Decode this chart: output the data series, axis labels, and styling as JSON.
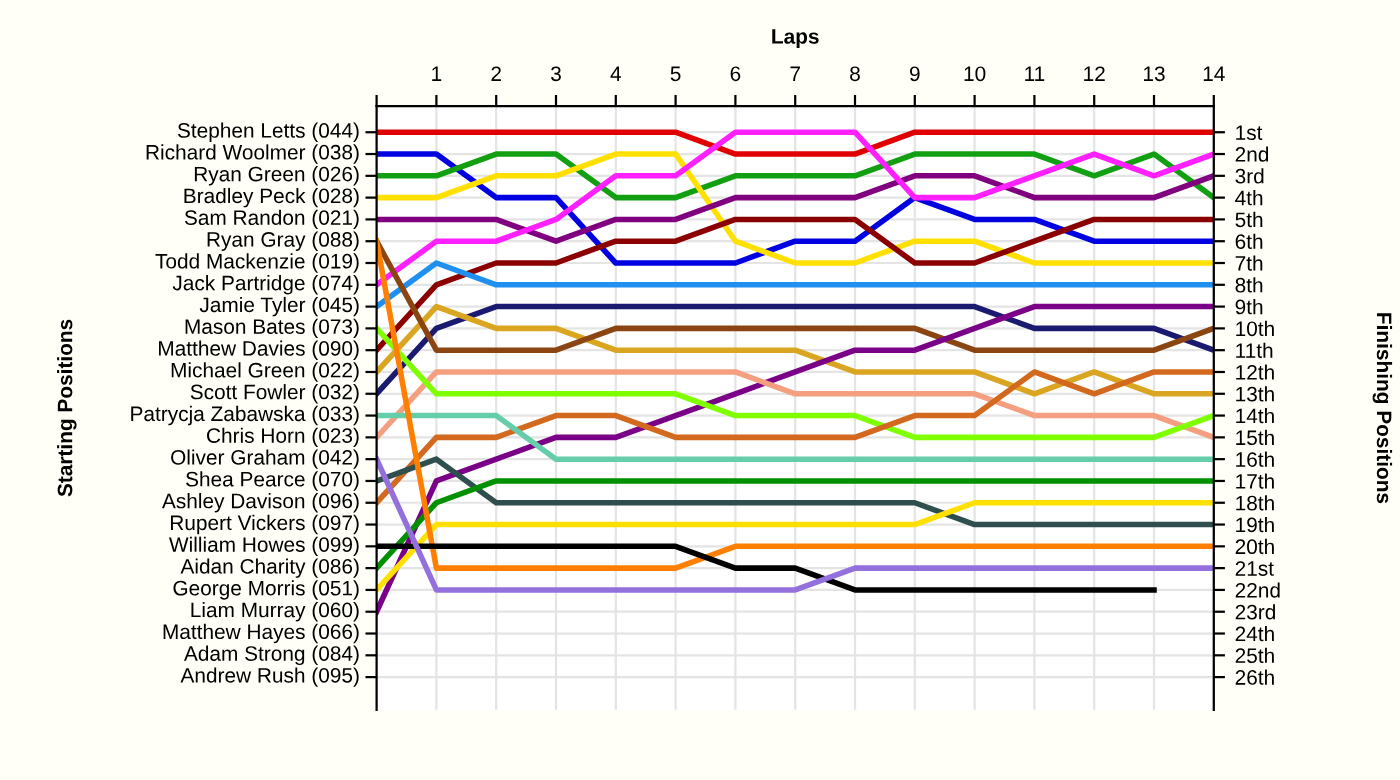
{
  "chart_data": {
    "type": "line",
    "xlabel": "Laps",
    "ylabel": "Finishing Positions",
    "x": [
      0,
      1,
      2,
      3,
      4,
      5,
      6,
      7,
      8,
      9,
      10,
      11,
      12,
      13,
      14
    ],
    "xlim": [
      0,
      14
    ],
    "xticks": [
      {
        "value": 0,
        "label": null
      },
      1,
      2,
      3,
      4,
      5,
      6,
      7,
      8,
      9,
      10,
      11,
      12,
      13,
      14
    ],
    "ylim": [
      27.5,
      -0.2
    ],
    "yticks": [
      {
        "value": 1,
        "label": "1st"
      },
      {
        "value": 2,
        "label": "2nd"
      },
      {
        "value": 3,
        "label": "3rd"
      },
      {
        "value": 4,
        "label": "4th"
      },
      {
        "value": 5,
        "label": "5th"
      },
      {
        "value": 6,
        "label": "6th"
      },
      {
        "value": 7,
        "label": "7th"
      },
      {
        "value": 8,
        "label": "8th"
      },
      {
        "value": 9,
        "label": "9th"
      },
      {
        "value": 10,
        "label": "10th"
      },
      {
        "value": 11,
        "label": "11th"
      },
      {
        "value": 12,
        "label": "12th"
      },
      {
        "value": 13,
        "label": "13th"
      },
      {
        "value": 14,
        "label": "14th"
      },
      {
        "value": 15,
        "label": "15th"
      },
      {
        "value": 16,
        "label": "16th"
      },
      {
        "value": 17,
        "label": "17th"
      },
      {
        "value": 18,
        "label": "18th"
      },
      {
        "value": 19,
        "label": "19th"
      },
      {
        "value": 20,
        "label": "20th"
      },
      {
        "value": 21,
        "label": "21st"
      },
      {
        "value": 22,
        "label": "22nd"
      },
      {
        "value": 23,
        "label": "23rd"
      },
      {
        "value": 24,
        "label": "24th"
      },
      {
        "value": 25,
        "label": "25th"
      },
      {
        "value": 26,
        "label": "26th"
      }
    ],
    "annotations": [
      "Starting Positions",
      "Stephen Letts (044)",
      "Richard Woolmer (038)",
      "Ryan Green (026)",
      "Bradley Peck (028)",
      "Sam Randon (021)",
      "Ryan Gray (088)",
      "Todd Mackenzie (019)",
      "Jack Partridge (074)",
      "Jamie Tyler (045)",
      "Mason Bates (073)",
      "Matthew Davies (090)",
      "Michael Green (022)",
      "Scott Fowler (032)",
      "Patrycja Zabawska (033)",
      "Chris Horn (023)",
      "Oliver Graham (042)",
      "Shea Pearce (070)",
      "Ashley Davison (096)",
      "Rupert Vickers (097)",
      "William Howes (099)",
      "Aidan Charity (086)",
      "George Morris (051)",
      "Liam Murray (060)",
      "Matthew Hayes (066)",
      "Adam Strong (084)",
      "Andrew Rush (095)"
    ],
    "grid": true,
    "legend": false,
    "marker": "none",
    "line_style": "solid",
    "series": [
      {
        "color": "#e00000",
        "values": [
          1,
          1,
          1,
          1,
          1,
          1,
          2,
          2,
          2,
          1,
          1,
          1,
          1,
          1,
          1
        ]
      },
      {
        "color": "#0000e0",
        "values": [
          2,
          2,
          4,
          4,
          7,
          7,
          7,
          6,
          6,
          4,
          5,
          5,
          6,
          6,
          6
        ]
      },
      {
        "color": "#12a012",
        "values": [
          3,
          3,
          2,
          2,
          4,
          4,
          3,
          3,
          3,
          2,
          2,
          2,
          3,
          2,
          4
        ]
      },
      {
        "color": "#ffe000",
        "values": [
          4,
          4,
          3,
          3,
          2,
          2,
          6,
          7,
          7,
          6,
          6,
          7,
          7,
          7,
          7
        ]
      },
      {
        "color": "#800080",
        "values": [
          5,
          5,
          5,
          6,
          5,
          5,
          4,
          4,
          4,
          3,
          3,
          4,
          4,
          4,
          3
        ]
      },
      {
        "color": "#ff20ff",
        "values": [
          8,
          6,
          6,
          5,
          3,
          3,
          1,
          1,
          1,
          4,
          4,
          3,
          2,
          3,
          2
        ]
      },
      {
        "color": "#8b0000",
        "values": [
          11,
          8,
          7,
          7,
          6,
          6,
          5,
          5,
          5,
          7,
          7,
          6,
          5,
          5,
          5
        ]
      },
      {
        "color": "#2090f0",
        "values": [
          9,
          7,
          8,
          8,
          8,
          8,
          8,
          8,
          8,
          8,
          8,
          8,
          8,
          8,
          8
        ]
      },
      {
        "color": "#1a1a70",
        "values": [
          13,
          10,
          9,
          9,
          9,
          9,
          9,
          9,
          9,
          9,
          9,
          10,
          10,
          10,
          11
        ]
      },
      {
        "color": "#daa520",
        "values": [
          12,
          9,
          10,
          10,
          11,
          11,
          11,
          11,
          12,
          12,
          12,
          13,
          12,
          13,
          13
        ]
      },
      {
        "color": "#8b4513",
        "values": [
          6,
          11,
          11,
          11,
          10,
          10,
          10,
          10,
          10,
          10,
          11,
          11,
          11,
          11,
          10
        ]
      },
      {
        "color": "#7b0088",
        "values": [
          23,
          17,
          16,
          15,
          15,
          14,
          13,
          12,
          11,
          11,
          10,
          9,
          9,
          9,
          9
        ]
      },
      {
        "color": "#f4a080",
        "values": [
          15,
          12,
          12,
          12,
          12,
          12,
          12,
          13,
          13,
          13,
          13,
          14,
          14,
          14,
          15
        ]
      },
      {
        "color": "#7fff00",
        "values": [
          10,
          13,
          13,
          13,
          13,
          13,
          14,
          14,
          14,
          15,
          15,
          15,
          15,
          15,
          14
        ]
      },
      {
        "color": "#d2691e",
        "values": [
          18,
          15,
          15,
          14,
          14,
          15,
          15,
          15,
          15,
          14,
          14,
          12,
          13,
          12,
          12
        ]
      },
      {
        "color": "#66cdaa",
        "values": [
          14,
          14,
          14,
          16,
          16,
          16,
          16,
          16,
          16,
          16,
          16,
          16,
          16,
          16,
          16
        ]
      },
      {
        "color": "#2f4f4f",
        "values": [
          17,
          16,
          18,
          18,
          18,
          18,
          18,
          18,
          18,
          18,
          19,
          19,
          19,
          19,
          19
        ]
      },
      {
        "color": "#009000",
        "values": [
          21,
          18,
          17,
          17,
          17,
          17,
          17,
          17,
          17,
          17,
          17,
          17,
          17,
          17,
          17
        ]
      },
      {
        "color": "#ffe000",
        "values": [
          22,
          19,
          19,
          19,
          19,
          19,
          19,
          19,
          19,
          19,
          18,
          18,
          18,
          18,
          18
        ]
      },
      {
        "color": "#ff8000",
        "values": [
          6,
          21,
          21,
          21,
          21,
          21,
          20,
          20,
          20,
          20,
          20,
          20,
          20,
          20,
          20
        ]
      },
      {
        "color": "#000000",
        "values": [
          20,
          20,
          20,
          20,
          20,
          20,
          21,
          21,
          22,
          22,
          22,
          22,
          22,
          22,
          null
        ]
      },
      {
        "color": "#9370db",
        "values": [
          16,
          22,
          22,
          22,
          22,
          22,
          22,
          22,
          21,
          21,
          21,
          21,
          21,
          21,
          21
        ]
      }
    ]
  }
}
